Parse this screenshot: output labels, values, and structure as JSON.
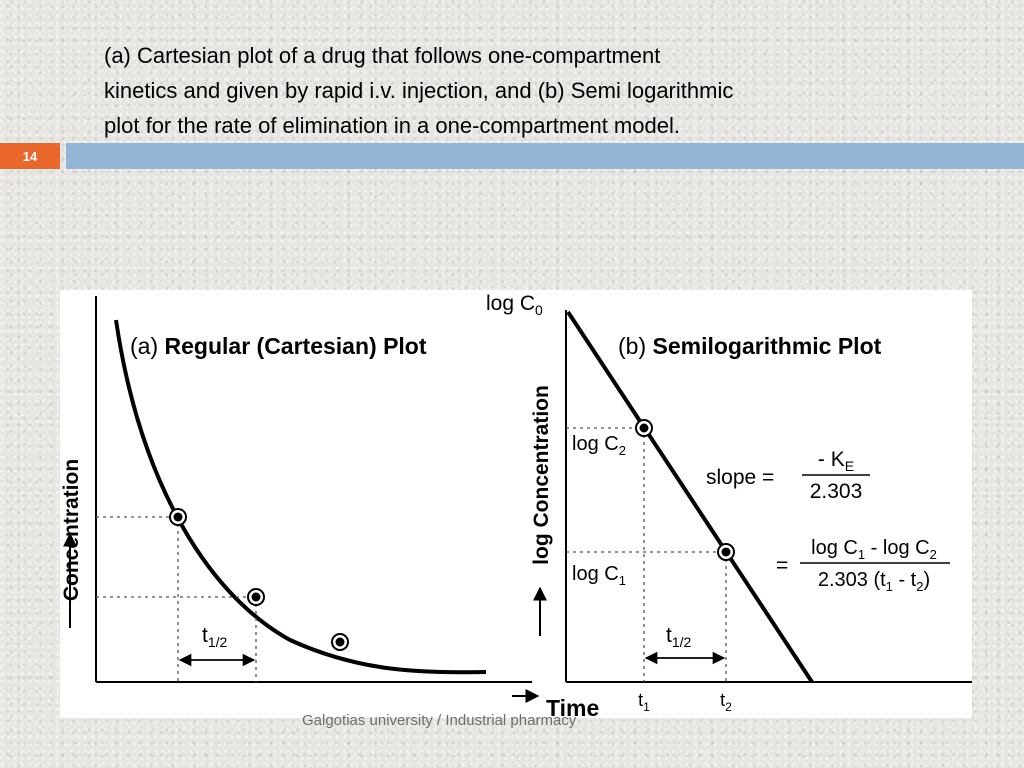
{
  "title": {
    "line1": "(a) Cartesian plot of a drug that follows one-compartment",
    "line2": "kinetics and given by rapid i.v. injection, and (b) Semi logarithmic",
    "line3": "plot for the rate of elimination in a one-compartment model."
  },
  "slide_number": "14",
  "colors": {
    "number_box": "#e9672b",
    "title_bar": "#93b5d6"
  },
  "figure": {
    "plot_a": {
      "title_prefix": "(a)",
      "title": "Regular (Cartesian) Plot",
      "y_label": "Concentration",
      "half_life_label": "t",
      "half_life_sub": "1/2"
    },
    "plot_b": {
      "title_prefix": "(b)",
      "title": "Semilogarithmic Plot",
      "y_label": "log Concentration",
      "log_c0": "log C",
      "log_c0_sub": "0",
      "log_c2": "log C",
      "log_c2_sub": "2",
      "log_c1": "log C",
      "log_c1_sub": "1",
      "slope_label": "slope =",
      "slope_num": "- K",
      "slope_num_sub": "E",
      "slope_den": "2.303",
      "eq_sign": "=",
      "eq_num_a": "log C",
      "eq_num_a_sub": "1",
      "eq_num_b": " - log C",
      "eq_num_b_sub": "2",
      "eq_den_a": "2.303 (t",
      "eq_den_a_sub": "1",
      "eq_den_b": " - t",
      "eq_den_b_sub": "2",
      "eq_den_c": ")",
      "t1": "t",
      "t1_sub": "1",
      "t2": "t",
      "t2_sub": "2",
      "half_life_label": "t",
      "half_life_sub": "1/2"
    },
    "x_label": "Time"
  },
  "footer": "Galgotias university / Industrial pharmacy"
}
